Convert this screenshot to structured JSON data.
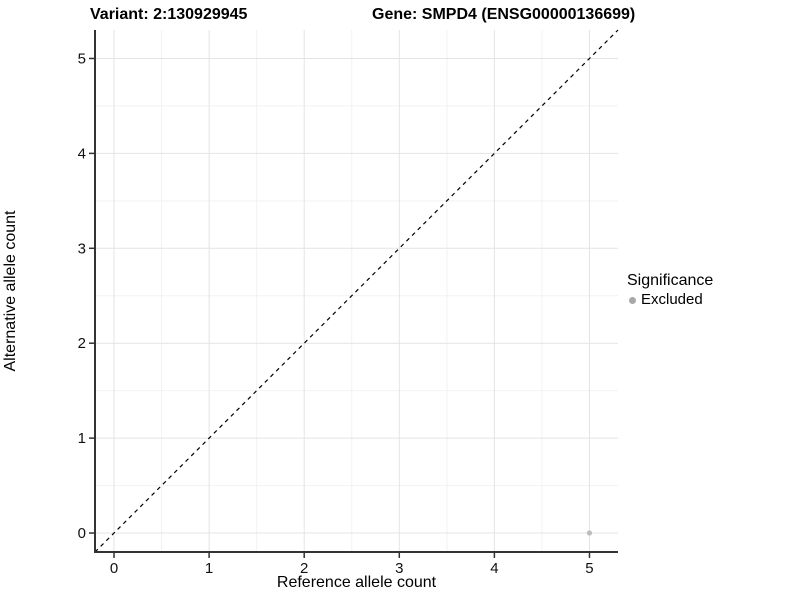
{
  "chart_data": {
    "type": "scatter",
    "titles": {
      "variant": "Variant: 2:130929945",
      "gene": "Gene: SMPD4 (ENSG00000136699)"
    },
    "xlabel": "Reference allele count",
    "ylabel": "Alternative allele count",
    "xlim": [
      -0.2,
      5.3
    ],
    "ylim": [
      -0.2,
      5.3
    ],
    "x_ticks": [
      0,
      1,
      2,
      3,
      4,
      5
    ],
    "y_ticks": [
      0,
      1,
      2,
      3,
      4,
      5
    ],
    "x_minor_ticks": [
      0.5,
      1.5,
      2.5,
      3.5,
      4.5
    ],
    "y_minor_ticks": [
      0.5,
      1.5,
      2.5,
      3.5,
      4.5
    ],
    "grid": true,
    "reference_line": {
      "kind": "identity",
      "from": [
        -0.2,
        -0.2
      ],
      "to": [
        5.3,
        5.3
      ],
      "style": "dashed",
      "color": "#000000"
    },
    "series": [
      {
        "name": "Excluded",
        "color": "#bdbdbd",
        "point_radius": 2.6,
        "points": [
          [
            5,
            0
          ]
        ]
      }
    ],
    "legend": {
      "title": "Significance",
      "position": "right",
      "entries": [
        {
          "label": "Excluded",
          "color": "#a8a8a8"
        }
      ]
    },
    "style": {
      "grid_major_color": "#e4e4e4",
      "grid_minor_color": "#f2f2f2",
      "axis_color": "#333333",
      "text_color": "#000000",
      "background": "#ffffff"
    }
  }
}
